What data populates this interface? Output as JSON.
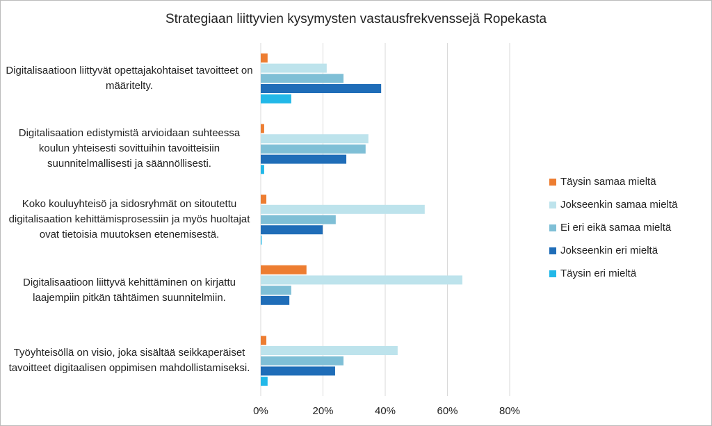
{
  "chart_data": {
    "type": "hbar",
    "title": "Strategiaan liittyvien kysymysten vastausfrekvenssejä Ropekasta",
    "categories": [
      "Digitalisaatioon liittyvät opettajakohtaiset tavoitteet on määritelty.",
      "Digitalisaation edistymistä arvioidaan suhteessa koulun yhteisesti sovittuihin tavoitteisiin suunnitelmallisesti ja säännöllisesti.",
      "Koko kouluyhteisö ja sidosryhmät on sitoutettu digitalisaation kehittämisprosessiin ja myös huoltajat ovat tietoisia muutoksen etenemisestä.",
      "Digitalisaatioon liittyvä kehittäminen on kirjattu laajempiin pitkän tähtäimen suunnitelmiin.",
      "Työyhteisöllä on visio, joka sisältää seikkaperäiset tavoitteet digitaalisen oppimisen mahdollistamiseksi."
    ],
    "series": [
      {
        "name": "Täysin samaa mieltä",
        "color": "#ed7d31",
        "values": [
          2.2,
          1.1,
          1.8,
          14.7,
          1.8
        ]
      },
      {
        "name": "Jokseenkin samaa mieltä",
        "color": "#bde3ec",
        "values": [
          21.2,
          34.6,
          52.7,
          64.8,
          44
        ]
      },
      {
        "name": "Ei eri eikä samaa mieltä",
        "color": "#7fbfd6",
        "values": [
          26.6,
          33.7,
          24.1,
          9.8,
          26.6
        ]
      },
      {
        "name": "Jokseenkin eri mieltä",
        "color": "#1f6db8",
        "values": [
          38.7,
          27.5,
          19.9,
          9.2,
          23.9
        ]
      },
      {
        "name": "Täysin eri mieltä",
        "color": "#22b8e8",
        "values": [
          9.8,
          1.1,
          0.3,
          0,
          2.2
        ]
      }
    ],
    "xlim": [
      0,
      80
    ],
    "xticks": [
      {
        "value": 0,
        "label": "0%"
      },
      {
        "value": 20,
        "label": "20%"
      },
      {
        "value": 40,
        "label": "40%"
      },
      {
        "value": 60,
        "label": "60%"
      },
      {
        "value": 80,
        "label": "80%"
      }
    ],
    "grid": true,
    "legend": "right"
  }
}
